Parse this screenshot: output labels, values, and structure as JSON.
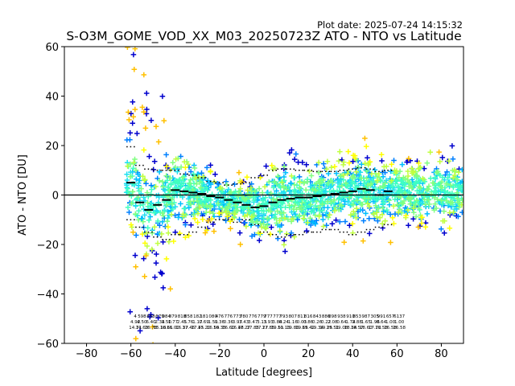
{
  "chart_data": {
    "type": "scatter",
    "plot_date": "Plot date: 2025-07-24 14:15:32",
    "title": "S-O3M_GOME_VOD_XX_M03_20250723Z ATO - NTO vs Latitude",
    "xlabel": "Latitude [degrees]",
    "ylabel": "ATO - NTO [DU]",
    "xlim": [
      -90,
      90
    ],
    "ylim": [
      -60,
      60
    ],
    "xticks": [
      -80,
      -60,
      -40,
      -20,
      0,
      20,
      40,
      60,
      80
    ],
    "yticks": [
      -60,
      -40,
      -20,
      0,
      20,
      40,
      60
    ],
    "xtick_labels": [
      "−80",
      "−60",
      "−40",
      "−20",
      "0",
      "20",
      "40",
      "60",
      "80"
    ],
    "ytick_labels": [
      "−60",
      "−40",
      "−20",
      "0",
      "20",
      "40",
      "60"
    ],
    "zero_line": 0,
    "marker": "+",
    "colormap_colors": [
      "#0000cd",
      "#0080ff",
      "#00bfff",
      "#20e0f0",
      "#40ffc0",
      "#80ff80",
      "#c0ff40",
      "#ffff00",
      "#ffc000"
    ],
    "bin_lat_start": -62,
    "bin_lat_step": 4,
    "bin_means": [
      5,
      -3,
      -6,
      -4,
      -2,
      2,
      1.5,
      1,
      0.5,
      -0.5,
      -1,
      -2,
      -3,
      -4,
      -5,
      -4.5,
      -3,
      -2,
      -1.5,
      -1,
      -1,
      -0.5,
      0,
      0.5,
      1,
      1.5,
      2.5,
      2,
      0,
      1.5
    ],
    "bin_upper": [
      19.5,
      12,
      10.5,
      10,
      10,
      10,
      8.5,
      8,
      7,
      5.5,
      5,
      4,
      4.5,
      5,
      7,
      8,
      10,
      10.5,
      10.5,
      10,
      10,
      9.5,
      9.5,
      9.5,
      10,
      10.5,
      11,
      10.5,
      9.5,
      10
    ],
    "bin_lower": [
      -10,
      -13,
      -15,
      -17,
      -18,
      -16,
      -16,
      -15,
      -13,
      -11,
      -10,
      -10,
      -11,
      -10,
      -12,
      -15,
      -16,
      -17,
      -16,
      -16,
      -15,
      -15,
      -14,
      -14,
      -15,
      -16,
      -15,
      -14,
      -13,
      -12
    ],
    "stat_labels": [
      {
        "lat": -58,
        "rows": [
          "4",
          "4.92",
          "14.71"
        ]
      },
      {
        "lat": -55,
        "rows": [
          "598",
          "4.50",
          "14.63"
        ]
      },
      {
        "lat": -51,
        "rows": [
          "838",
          "6.40",
          "16.78"
        ]
      },
      {
        "lat": -47,
        "rows": [
          "679",
          "2.34",
          "15.18"
        ]
      },
      {
        "lat": -44,
        "rows": [
          "984",
          "1.50",
          "16.61"
        ]
      },
      {
        "lat": -41,
        "rows": [
          "879",
          "1.77",
          "16.00"
        ]
      },
      {
        "lat": -37,
        "rows": [
          "818",
          "2.45",
          "16.37"
        ]
      },
      {
        "lat": -34,
        "rows": [
          "858",
          "1.76",
          "17.46"
        ]
      },
      {
        "lat": -30,
        "rows": [
          "182",
          "1.17",
          "17.45"
        ]
      },
      {
        "lat": -27,
        "rows": [
          "181",
          "0.69",
          "17.20"
        ]
      },
      {
        "lat": -23,
        "rows": [
          "080",
          "1.51",
          "16.59"
        ]
      },
      {
        "lat": -20,
        "rows": [
          "476",
          "0.36",
          "16.35"
        ]
      },
      {
        "lat": -16,
        "rows": [
          "776",
          "0.36",
          "16.60"
        ]
      },
      {
        "lat": -12,
        "rows": [
          "773",
          "3.97",
          "16.48"
        ]
      },
      {
        "lat": -9,
        "rows": [
          "780",
          "3.43",
          "17.27"
        ]
      },
      {
        "lat": -5,
        "rows": [
          "776",
          "3.47",
          "17.85"
        ]
      },
      {
        "lat": -1,
        "rows": [
          "779",
          "3.13",
          "17.27"
        ]
      },
      {
        "lat": 2,
        "rows": [
          "777",
          "3.93",
          "17.85"
        ]
      },
      {
        "lat": 6,
        "rows": [
          "777",
          "3.84",
          "19.51"
        ]
      },
      {
        "lat": 9,
        "rows": [
          "793",
          "0.24",
          "10.13"
        ]
      },
      {
        "lat": 13,
        "rows": [
          "807",
          "1.16",
          "19.86"
        ]
      },
      {
        "lat": 17,
        "rows": [
          "811",
          "0.03",
          "19.65"
        ]
      },
      {
        "lat": 20,
        "rows": [
          "816",
          "0.86",
          "19.42"
        ]
      },
      {
        "lat": 24,
        "rows": [
          "843",
          "0.26",
          "19.34"
        ]
      },
      {
        "lat": 28,
        "rows": [
          "886",
          "0.22",
          "19.25"
        ]
      },
      {
        "lat": 31,
        "rows": [
          "898",
          "2.08",
          "19.51"
        ]
      },
      {
        "lat": 35,
        "rows": [
          "938",
          "0.64",
          "19.08"
        ]
      },
      {
        "lat": 39,
        "rows": [
          "910",
          "1.74",
          "18.34"
        ]
      },
      {
        "lat": 42,
        "rows": [
          "853",
          "2.88",
          "18.57"
        ]
      },
      {
        "lat": 46,
        "rows": [
          "987",
          "1.65",
          "18.60"
        ]
      },
      {
        "lat": 50,
        "rows": [
          "305",
          "1.96",
          "17.72"
        ]
      },
      {
        "lat": 53,
        "rows": [
          "991",
          "0.64",
          "16.58"
        ]
      },
      {
        "lat": 57,
        "rows": [
          "657",
          "1.00",
          "16.58"
        ]
      },
      {
        "lat": 61,
        "rows": [
          "6137",
          "1.00",
          "16.58"
        ]
      }
    ]
  }
}
